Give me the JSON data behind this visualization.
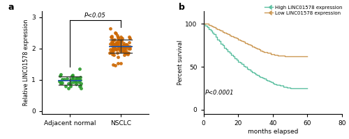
{
  "panel_a": {
    "label": "a",
    "ylabel": "Relative LINC01578 expression",
    "categories": [
      "Adjacent normal",
      "NSCLC"
    ],
    "group1_mean": 1.0,
    "group1_std": 0.12,
    "group1_color": "#2a9a2a",
    "group2_mean": 2.1,
    "group2_std": 0.18,
    "group2_color": "#cc6600",
    "ylim": [
      -0.1,
      3.2
    ],
    "yticks": [
      0,
      1,
      2,
      3
    ],
    "pvalue_text": "P<0.05",
    "n1": 38,
    "n2": 90,
    "bracket_y": 2.92,
    "g1_ymin": 0.55,
    "g1_ymax": 1.42,
    "g2_ymin": 1.42,
    "g2_ymax": 2.72
  },
  "panel_b": {
    "label": "b",
    "xlabel": "months elapsed",
    "ylabel": "Percent survival",
    "xlim": [
      0,
      80
    ],
    "ylim": [
      -5,
      115
    ],
    "xticks": [
      0,
      20,
      40,
      60,
      80
    ],
    "yticks": [
      0,
      50,
      100
    ],
    "pvalue_text": "P<0.0001",
    "high_color": "#5bbfa0",
    "low_color": "#cc9955",
    "legend_high": "High LINC01578 expression",
    "legend_low": "Low LINC01578 expression",
    "high_x": [
      0,
      1,
      2,
      3,
      4,
      5,
      6,
      7,
      8,
      9,
      10,
      11,
      12,
      13,
      14,
      15,
      16,
      17,
      18,
      19,
      20,
      21,
      22,
      23,
      24,
      25,
      26,
      27,
      28,
      29,
      30,
      31,
      32,
      33,
      34,
      35,
      36,
      37,
      38,
      39,
      40,
      41,
      42,
      43,
      44,
      45,
      46,
      47,
      48,
      49,
      50,
      51,
      52,
      53,
      54,
      55,
      56,
      57,
      58,
      59,
      60
    ],
    "high_y": [
      100,
      98,
      96,
      94,
      92,
      90,
      88,
      85,
      82,
      80,
      77,
      75,
      72,
      70,
      68,
      66,
      64,
      62,
      60,
      58,
      56,
      55,
      53,
      51,
      50,
      48,
      47,
      45,
      44,
      43,
      41,
      40,
      39,
      38,
      37,
      36,
      35,
      34,
      33,
      32,
      31,
      30,
      29,
      29,
      28,
      28,
      27,
      27,
      26,
      26,
      25,
      25,
      25,
      25,
      25,
      25,
      25,
      25,
      25,
      25,
      25
    ],
    "low_x": [
      0,
      1,
      2,
      3,
      4,
      5,
      6,
      7,
      8,
      9,
      10,
      11,
      12,
      13,
      14,
      15,
      16,
      17,
      18,
      19,
      20,
      21,
      22,
      23,
      24,
      25,
      26,
      27,
      28,
      29,
      30,
      31,
      32,
      33,
      34,
      35,
      36,
      37,
      38,
      39,
      40,
      41,
      42,
      43,
      44,
      45,
      46,
      47,
      48,
      49,
      50,
      51,
      52,
      53,
      54,
      55,
      56,
      57,
      58,
      59,
      60
    ],
    "low_y": [
      100,
      100,
      100,
      99,
      98,
      97,
      96,
      95,
      94,
      93,
      92,
      91,
      90,
      89,
      88,
      87,
      86,
      85,
      84,
      83,
      82,
      81,
      80,
      79,
      78,
      77,
      76,
      75,
      74,
      73,
      72,
      71,
      70,
      69,
      68,
      67,
      67,
      66,
      66,
      65,
      65,
      64,
      64,
      63,
      63,
      63,
      63,
      62,
      62,
      62,
      62,
      62,
      62,
      62,
      62,
      62,
      62,
      62,
      62,
      62,
      62
    ]
  }
}
